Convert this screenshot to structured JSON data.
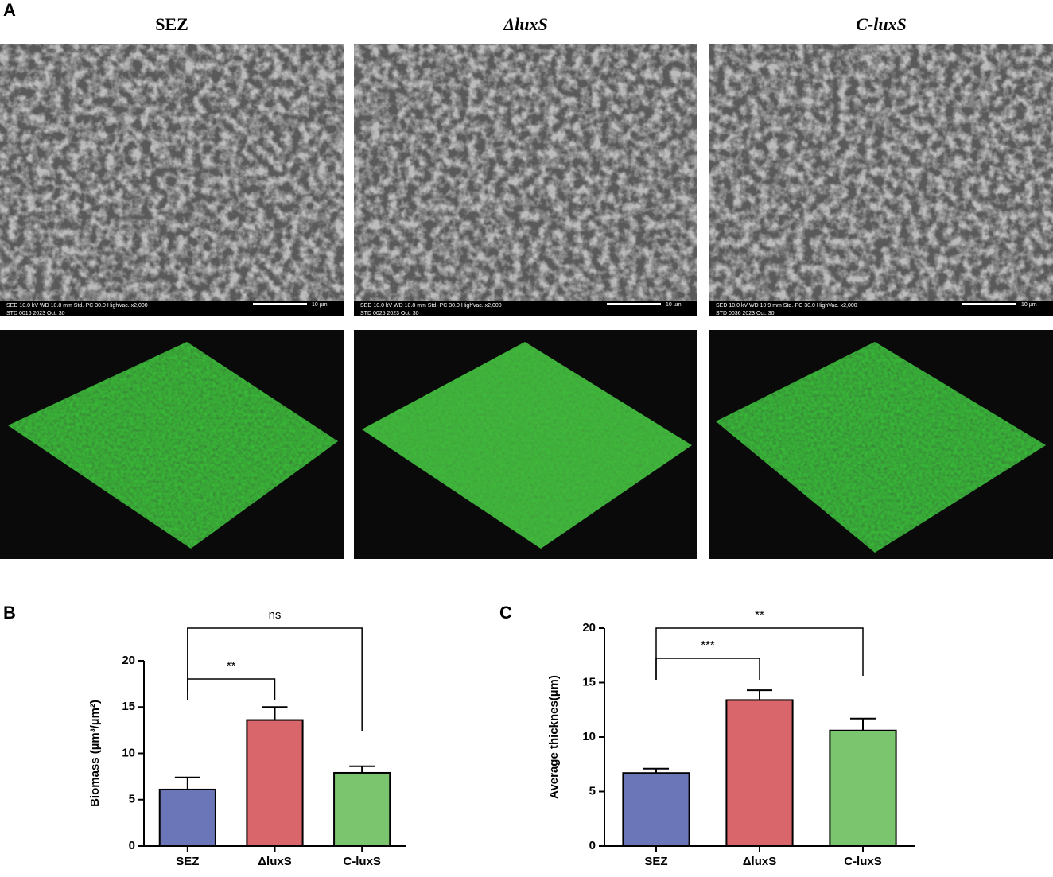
{
  "panel_labels": [
    "A",
    "B",
    "C"
  ],
  "panel_a": {
    "columns": [
      {
        "title": "SEZ",
        "sem_line1": "SED   10.0 kV   WD 10.8 mm   Std.-PC 30.0   HighVac.   x2,000",
        "sem_line2": "STD   0016   2023 Oct. 30",
        "scale": "10 µm"
      },
      {
        "title": "ΔluxS",
        "sem_line1": "SED   10.0 kV   WD 10.8 mm   Std.-PC 30.0   HighVac.   x2,000",
        "sem_line2": "STD   0025   2023 Oct. 30",
        "scale": "10 µm"
      },
      {
        "title": "C-luxS",
        "sem_line1": "SED   10.0 kV   WD 10.9 mm   Std.-PC 30.0   HighVac.   x2,000",
        "sem_line2": "STD   0036   2023 Oct. 30",
        "scale": "10 µm"
      }
    ]
  },
  "chart_data": [
    {
      "type": "bar",
      "y_label": "Biomass (µm³/µm²)",
      "categories": [
        "SEZ",
        "ΔluxS",
        "C-luxS"
      ],
      "values": [
        6.1,
        13.6,
        7.9
      ],
      "errors": [
        1.3,
        1.4,
        0.7
      ],
      "colors": [
        "#6a76b8",
        "#d9666a",
        "#7bc56f"
      ],
      "ylim": [
        0,
        20
      ],
      "yticks": [
        0,
        5,
        10,
        15,
        20
      ],
      "annotations": [
        "**",
        "ns"
      ]
    },
    {
      "type": "bar",
      "y_label": "Average thicknes(µm)",
      "categories": [
        "SEZ",
        "ΔluxS",
        "C-luxS"
      ],
      "values": [
        6.7,
        13.4,
        10.6
      ],
      "errors": [
        0.4,
        0.9,
        1.1
      ],
      "colors": [
        "#6a76b8",
        "#d9666a",
        "#7bc56f"
      ],
      "ylim": [
        0,
        20
      ],
      "yticks": [
        0,
        5,
        10,
        15,
        20
      ],
      "annotations": [
        "***",
        "**"
      ]
    }
  ]
}
